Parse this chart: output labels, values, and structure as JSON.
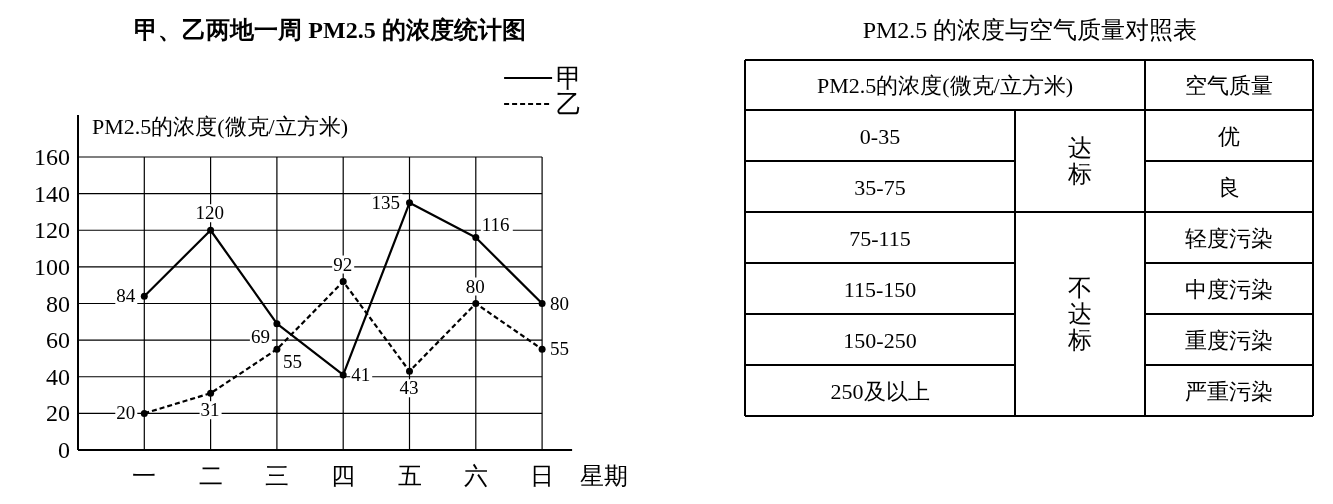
{
  "chart_data": [
    {
      "type": "line",
      "title": "甲、乙两地一周 PM2.5 的浓度统计图",
      "ylabel": "PM2.5的浓度(微克/立方米)",
      "xlabel": "星期",
      "categories": [
        "一",
        "二",
        "三",
        "四",
        "五",
        "六",
        "日"
      ],
      "series": [
        {
          "name": "甲",
          "color": "#000000",
          "line_style": "solid",
          "values": [
            84,
            120,
            69,
            41,
            135,
            116,
            80
          ]
        },
        {
          "name": "乙",
          "color": "#000000",
          "line_style": "dashed",
          "values": [
            20,
            31,
            55,
            92,
            43,
            80,
            55
          ]
        }
      ],
      "ylim": [
        0,
        160
      ],
      "yticks": [
        0,
        20,
        40,
        60,
        80,
        100,
        120,
        140,
        160
      ],
      "grid": true,
      "legend": "top right",
      "marker": "circle",
      "data_labels": true
    },
    {
      "type": "other",
      "title": "PM2.5 的浓度与空气质量对照表",
      "annotations": [
        "PM2.5的浓度(微克/立方米)",
        "空气质量",
        "0-35",
        "35-75",
        "75-115",
        "115-150",
        "150-250",
        "250及以上",
        "达标",
        "不达标",
        "优",
        "良",
        "轻度污染",
        "中度污染",
        "重度污染",
        "严重污染"
      ]
    }
  ]
}
